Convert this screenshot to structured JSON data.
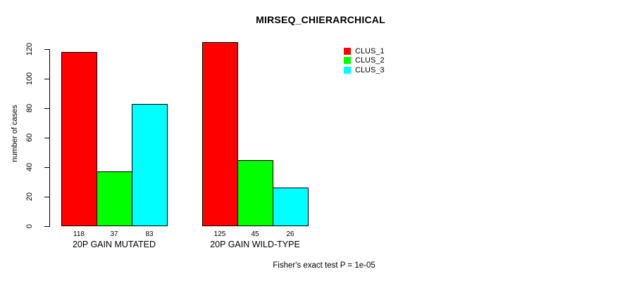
{
  "chart_data": {
    "type": "bar",
    "title": "MIRSEQ_CHIERARCHICAL",
    "categories": [
      "20P GAIN MUTATED",
      "20P GAIN WILD-TYPE"
    ],
    "series": [
      {
        "name": "CLUS_1",
        "color": "#ff0000",
        "values": [
          118,
          125
        ]
      },
      {
        "name": "CLUS_2",
        "color": "#00ff00",
        "values": [
          37,
          45
        ]
      },
      {
        "name": "CLUS_3",
        "color": "#00ffff",
        "values": [
          83,
          26
        ]
      }
    ],
    "bar_value_labels": [
      [
        118,
        37,
        83
      ],
      [
        125,
        45,
        26
      ]
    ],
    "xlabel": "",
    "ylabel": "number of cases",
    "ylim": [
      0,
      125
    ],
    "yticks": [
      0,
      20,
      40,
      60,
      80,
      100,
      120
    ],
    "grid": false,
    "legend": {
      "position": "top-right",
      "entries": [
        "CLUS_1",
        "CLUS_2",
        "CLUS_3"
      ],
      "colors": [
        "#ff0000",
        "#00ff00",
        "#00ffff"
      ]
    },
    "annotation": "Fisher's exact test P = 1e-05",
    "axis_color": "#000000",
    "background_color": "#ffffff"
  }
}
